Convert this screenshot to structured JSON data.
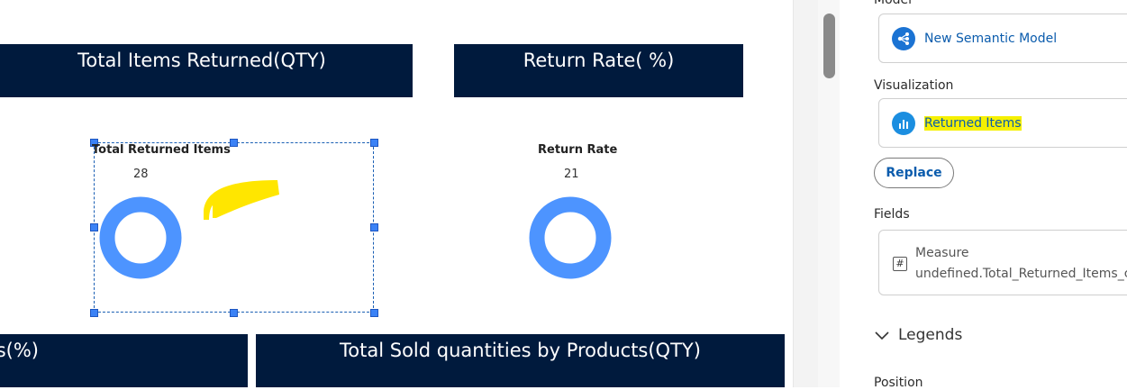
{
  "canvas": {
    "banners": {
      "total_items_returned": "Total Items Returned(QTY)",
      "return_rate": "Return Rate( %)",
      "left_partial": "ts(%)",
      "total_sold": "Total Sold quantities by Products(QTY)"
    },
    "charts": {
      "returned": {
        "title": "Total Returned Items",
        "value": "28"
      },
      "rate": {
        "title": "Return Rate",
        "value": "21"
      }
    }
  },
  "chart_data": [
    {
      "type": "pie",
      "title": "Total Returned Items",
      "values": [
        28
      ],
      "color": "#4d94ff"
    },
    {
      "type": "pie",
      "title": "Return Rate",
      "values": [
        21
      ],
      "color": "#4d94ff"
    }
  ],
  "panel": {
    "model_label": "Model",
    "model_name": "New Semantic Model",
    "model_icon": "semantic-model-icon",
    "visualization_label": "Visualization",
    "visualization_name": "Returned Items",
    "visualization_icon": "bar-chart-icon",
    "replace_label": "Replace",
    "fields_label": "Fields",
    "field_type": "Measure",
    "field_name": "undefined.Total_Returned_Items_clc",
    "field_icon": "hash-icon",
    "legends_label": "Legends",
    "position_label": "Position"
  },
  "colors": {
    "banner_bg": "#001a3d",
    "donut": "#4d94ff",
    "link": "#0b5cad",
    "highlight": "#f5f000"
  }
}
